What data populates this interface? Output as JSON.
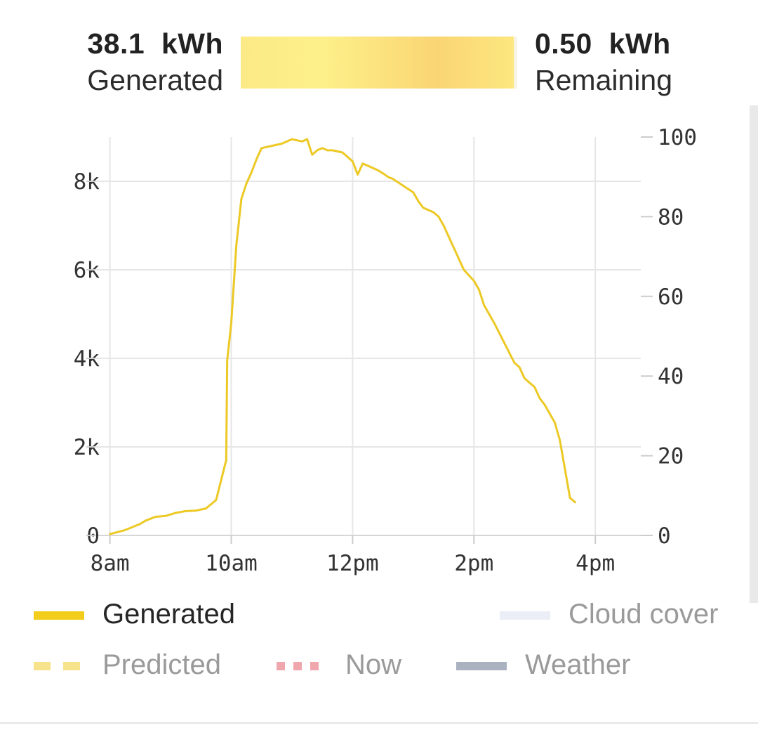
{
  "summary": {
    "generated_value": "38.1  kWh",
    "generated_label": "Generated",
    "remaining_value": "0.50  kWh",
    "remaining_label": "Remaining",
    "progress_fraction": 0.987
  },
  "chart_data": {
    "type": "line",
    "title": "",
    "xlabel": "",
    "ylabel": "",
    "x_ticks": [
      "8am",
      "10am",
      "12pm",
      "2pm",
      "4pm"
    ],
    "xlim": [
      "7:45",
      "16:45"
    ],
    "y_left_ticks": [
      "0",
      "2k",
      "4k",
      "6k",
      "8k"
    ],
    "y_left_range": [
      0,
      9000
    ],
    "y_right_ticks": [
      "0",
      "20",
      "40",
      "60",
      "80",
      "100"
    ],
    "y_right_range": [
      0,
      100
    ],
    "grid": true,
    "series": [
      {
        "name": "Generated",
        "color": "#ecc925",
        "x": [
          "8:00",
          "8:15",
          "8:30",
          "8:35",
          "8:45",
          "8:55",
          "9:05",
          "9:15",
          "9:25",
          "9:35",
          "9:45",
          "9:55",
          "9:56",
          "10:00",
          "10:05",
          "10:10",
          "10:15",
          "10:20",
          "10:25",
          "10:30",
          "10:40",
          "10:50",
          "11:00",
          "11:10",
          "11:15",
          "11:20",
          "11:25",
          "11:30",
          "11:35",
          "11:40",
          "11:50",
          "12:00",
          "12:05",
          "12:10",
          "12:15",
          "12:25",
          "12:30",
          "12:35",
          "12:40",
          "12:50",
          "13:00",
          "13:05",
          "13:10",
          "13:20",
          "13:25",
          "13:30",
          "13:40",
          "13:50",
          "14:00",
          "14:05",
          "14:10",
          "14:20",
          "14:30",
          "14:40",
          "14:45",
          "14:50",
          "15:00",
          "15:05",
          "15:10",
          "15:20",
          "15:25",
          "15:35",
          "15:40"
        ],
        "values": [
          30,
          120,
          260,
          330,
          420,
          440,
          510,
          550,
          560,
          610,
          800,
          1700,
          3950,
          4800,
          6550,
          7600,
          7950,
          8200,
          8500,
          8750,
          8800,
          8850,
          8950,
          8900,
          8950,
          8600,
          8700,
          8750,
          8700,
          8700,
          8650,
          8450,
          8150,
          8400,
          8350,
          8250,
          8180,
          8100,
          8050,
          7900,
          7750,
          7550,
          7400,
          7300,
          7200,
          7000,
          6500,
          6000,
          5750,
          5550,
          5200,
          4800,
          4350,
          3900,
          3800,
          3550,
          3350,
          3100,
          2950,
          2550,
          2150,
          850,
          750
        ]
      }
    ],
    "legend": [
      {
        "label": "Generated",
        "style": "solid",
        "color": "#f2cd1c",
        "active": true
      },
      {
        "label": "Cloud cover",
        "style": "solid",
        "color": "#eceef7",
        "active": false
      },
      {
        "label": "Predicted",
        "style": "dashed",
        "color": "#f6e38b",
        "active": false
      },
      {
        "label": "Now",
        "style": "dotted",
        "color": "#f0a6ad",
        "active": false
      },
      {
        "label": "Weather",
        "style": "solid",
        "color": "#aab2c2",
        "active": false
      }
    ]
  }
}
